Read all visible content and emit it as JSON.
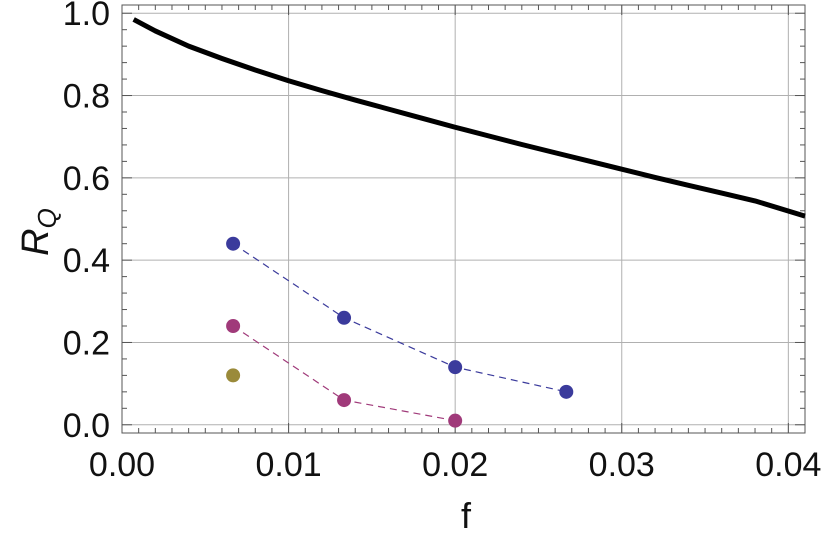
{
  "chart_data": {
    "type": "scatter",
    "title": "",
    "xlabel": "f",
    "ylabel": {
      "main": "R",
      "subscript": "Q"
    },
    "xlim": [
      0.0,
      0.041
    ],
    "ylim": [
      -0.02,
      1.02
    ],
    "grid": true,
    "x_tick_labels": [
      "0.00",
      "0.01",
      "0.02",
      "0.03",
      "0.04"
    ],
    "x_ticks": [
      0.0,
      0.01,
      0.02,
      0.03,
      0.04
    ],
    "y_tick_labels": [
      "0.0",
      "0.2",
      "0.4",
      "0.6",
      "0.8",
      "1.0"
    ],
    "y_ticks": [
      0.0,
      0.2,
      0.4,
      0.6,
      0.8,
      1.0
    ],
    "curve": {
      "style": "solid",
      "color": "#000000",
      "x": [
        0.0007,
        0.002,
        0.004,
        0.006,
        0.008,
        0.01,
        0.012,
        0.014,
        0.016,
        0.018,
        0.02,
        0.022,
        0.024,
        0.026,
        0.028,
        0.03,
        0.032,
        0.034,
        0.036,
        0.038,
        0.041
      ],
      "y": [
        0.985,
        0.957,
        0.92,
        0.89,
        0.862,
        0.836,
        0.812,
        0.789,
        0.767,
        0.745,
        0.723,
        0.702,
        0.681,
        0.661,
        0.641,
        0.621,
        0.601,
        0.582,
        0.563,
        0.544,
        0.507
      ]
    },
    "series": [
      {
        "color": "#3b3b9c",
        "dashed": true,
        "x": [
          0.00667,
          0.01333,
          0.02,
          0.02667
        ],
        "y": [
          0.44,
          0.26,
          0.14,
          0.08
        ]
      },
      {
        "color": "#a03a7a",
        "dashed": true,
        "x": [
          0.00667,
          0.01333,
          0.02
        ],
        "y": [
          0.24,
          0.06,
          0.01
        ]
      },
      {
        "color": "#9a8a3a",
        "dashed": false,
        "x": [
          0.00667
        ],
        "y": [
          0.12
        ]
      }
    ]
  }
}
